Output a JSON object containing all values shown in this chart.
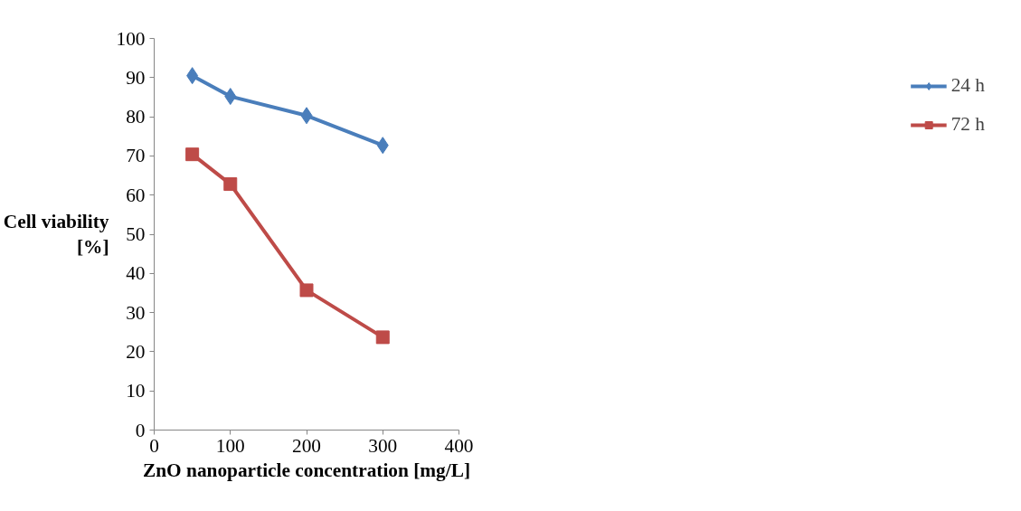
{
  "chart_data": {
    "type": "line",
    "xlabel": "ZnO nanoparticle concentration [mg/L]",
    "ylabel": "Cell viability\n[%]",
    "x": [
      50,
      100,
      200,
      300
    ],
    "series": [
      {
        "name": "24 h",
        "color": "#4a7ebb",
        "marker": "diamond",
        "values": [
          90.5,
          85.2,
          80.3,
          72.7
        ]
      },
      {
        "name": "72 h",
        "color": "#be4b48",
        "marker": "square",
        "values": [
          70.4,
          62.8,
          35.7,
          23.7
        ]
      }
    ],
    "xlim": [
      0,
      400
    ],
    "xticks": [
      0,
      100,
      200,
      300,
      400
    ],
    "ylim": [
      0,
      100
    ],
    "yticks": [
      0,
      10,
      20,
      30,
      40,
      50,
      60,
      70,
      80,
      90,
      100
    ],
    "grid": false,
    "legend": "right",
    "line_style": "solid"
  }
}
